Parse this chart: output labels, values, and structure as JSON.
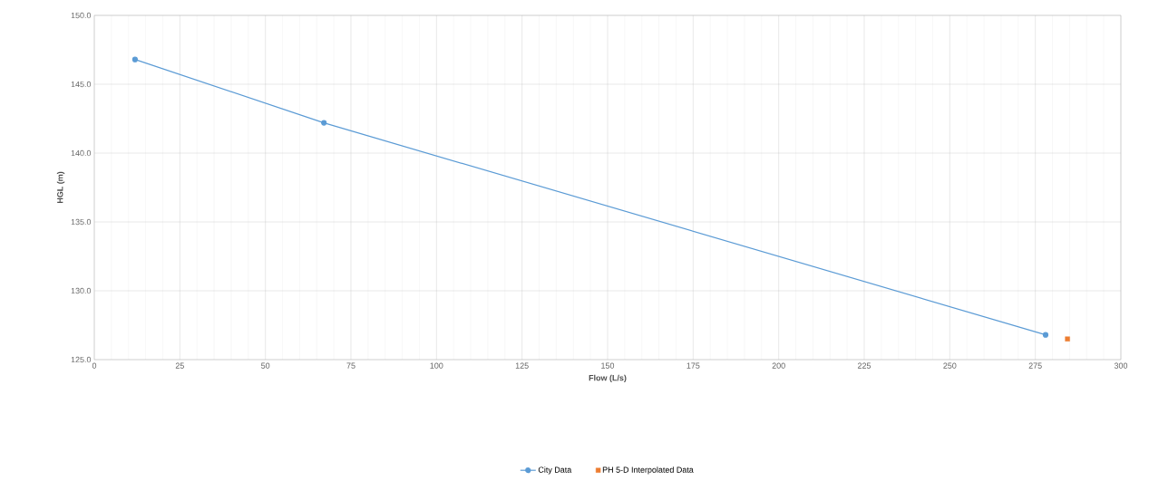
{
  "chart_data": {
    "type": "line",
    "xlabel": "Flow (L/s)",
    "ylabel": "HGL (m)",
    "series": [
      {
        "name": "City Data",
        "color": "#5b9bd5",
        "x": [
          11.9,
          67.1,
          278.0
        ],
        "values": [
          146.8,
          142.2,
          126.8
        ],
        "marker": "circle"
      },
      {
        "name": "PH 5-D Interpolated Data",
        "type": "scatter",
        "color": "#ed7d31",
        "x": [
          284.4
        ],
        "values": [
          126.5
        ],
        "marker": "square"
      }
    ],
    "xlim": [
      0,
      300
    ],
    "xticks": [
      0,
      25,
      50,
      75,
      100,
      125,
      150,
      175,
      200,
      225,
      250,
      275,
      300
    ],
    "ylim": [
      125,
      150
    ],
    "yticks": [
      {
        "value": 125,
        "label": "125.0"
      },
      {
        "value": 130,
        "label": "130.0"
      },
      {
        "value": 135,
        "label": "135.0"
      },
      {
        "value": 140,
        "label": "140.0"
      },
      {
        "value": 145,
        "label": "145.0"
      },
      {
        "value": 150,
        "label": "150.0"
      }
    ],
    "grid": true,
    "legend": "bottom"
  }
}
